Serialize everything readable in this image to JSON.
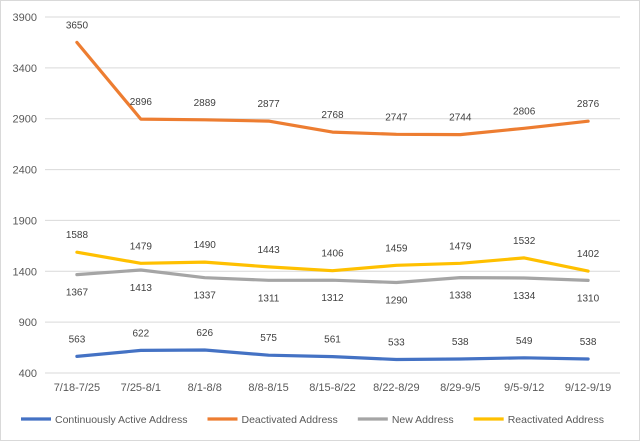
{
  "chart_data": {
    "type": "line",
    "title": "",
    "xlabel": "",
    "ylabel": "",
    "categories": [
      "7/18-7/25",
      "7/25-8/1",
      "8/1-8/8",
      "8/8-8/15",
      "8/15-8/22",
      "8/22-8/29",
      "8/29-9/5",
      "9/5-9/12",
      "9/12-9/19"
    ],
    "ylim": [
      400,
      3900
    ],
    "yticks": [
      400,
      900,
      1400,
      1900,
      2400,
      2900,
      3400,
      3900
    ],
    "grid": true,
    "legend": "bottom",
    "series": [
      {
        "name": "Continuously Active Address",
        "color": "#4472c4",
        "label_pos": "above",
        "values": [
          563,
          622,
          626,
          575,
          561,
          533,
          538,
          549,
          538
        ]
      },
      {
        "name": "Deactivated Address",
        "color": "#ed7d31",
        "label_pos": "above",
        "values": [
          3650,
          2896,
          2889,
          2877,
          2768,
          2747,
          2744,
          2806,
          2876
        ]
      },
      {
        "name": "New Address",
        "color": "#a5a5a5",
        "label_pos": "below",
        "values": [
          1367,
          1413,
          1337,
          1311,
          1312,
          1290,
          1338,
          1334,
          1310
        ]
      },
      {
        "name": "Reactivated Address",
        "color": "#ffc000",
        "label_pos": "above",
        "values": [
          1588,
          1479,
          1490,
          1443,
          1406,
          1459,
          1479,
          1532,
          1402
        ]
      }
    ]
  }
}
